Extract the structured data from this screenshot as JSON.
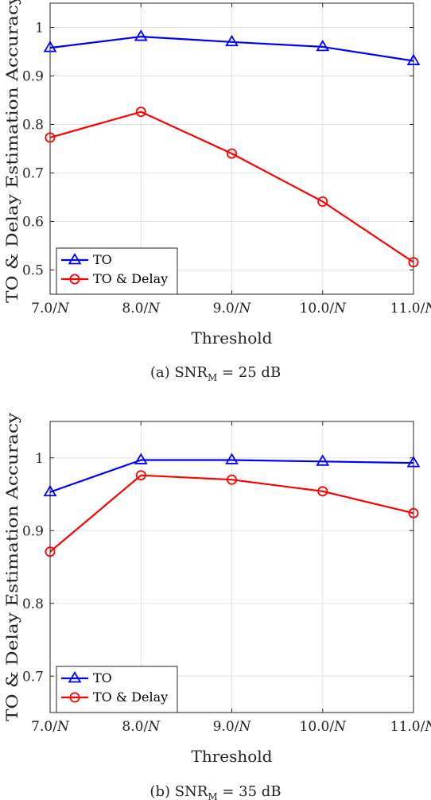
{
  "chart_data": [
    {
      "type": "line",
      "categories": [
        "7.0/N",
        "8.0/N",
        "9.0/N",
        "10.0/N",
        "11.0/N"
      ],
      "xlabel": "Threshold",
      "ylabel": "TO & Delay Estimation Accuracy",
      "ylim": [
        0.45,
        1.05
      ],
      "yticks": [
        0.5,
        0.6,
        0.7,
        0.8,
        0.9,
        1
      ],
      "ytick_labels": [
        "0.5",
        "0.6",
        "0.7",
        "0.8",
        "0.9",
        "1"
      ],
      "grid": true,
      "legend_position": "bottom-left",
      "series": [
        {
          "name": "TO",
          "color": "#0000ff",
          "marker": "triangle",
          "values": [
            0.958,
            0.981,
            0.97,
            0.96,
            0.931
          ]
        },
        {
          "name": "TO & Delay",
          "color": "#ff0000",
          "marker": "circle",
          "values": [
            0.773,
            0.826,
            0.74,
            0.641,
            0.516
          ]
        }
      ],
      "caption": {
        "prefix": "(a) SNR",
        "subscript": "M",
        "suffix": " = 25 dB"
      }
    },
    {
      "type": "line",
      "categories": [
        "7.0/N",
        "8.0/N",
        "9.0/N",
        "10.0/N",
        "11.0/N"
      ],
      "xlabel": "Threshold",
      "ylabel": "TO & Delay Estimation Accuracy",
      "ylim": [
        0.65,
        1.05
      ],
      "yticks": [
        0.7,
        0.8,
        0.9,
        1
      ],
      "ytick_labels": [
        "0.7",
        "0.8",
        "0.9",
        "1"
      ],
      "grid": true,
      "legend_position": "bottom-left",
      "series": [
        {
          "name": "TO",
          "color": "#0000ff",
          "marker": "triangle",
          "values": [
            0.953,
            0.997,
            0.997,
            0.995,
            0.993
          ]
        },
        {
          "name": "TO & Delay",
          "color": "#ff0000",
          "marker": "circle",
          "values": [
            0.871,
            0.976,
            0.97,
            0.954,
            0.924
          ]
        }
      ],
      "caption": {
        "prefix": "(b) SNR",
        "subscript": "M",
        "suffix": " = 35 dB"
      }
    }
  ]
}
